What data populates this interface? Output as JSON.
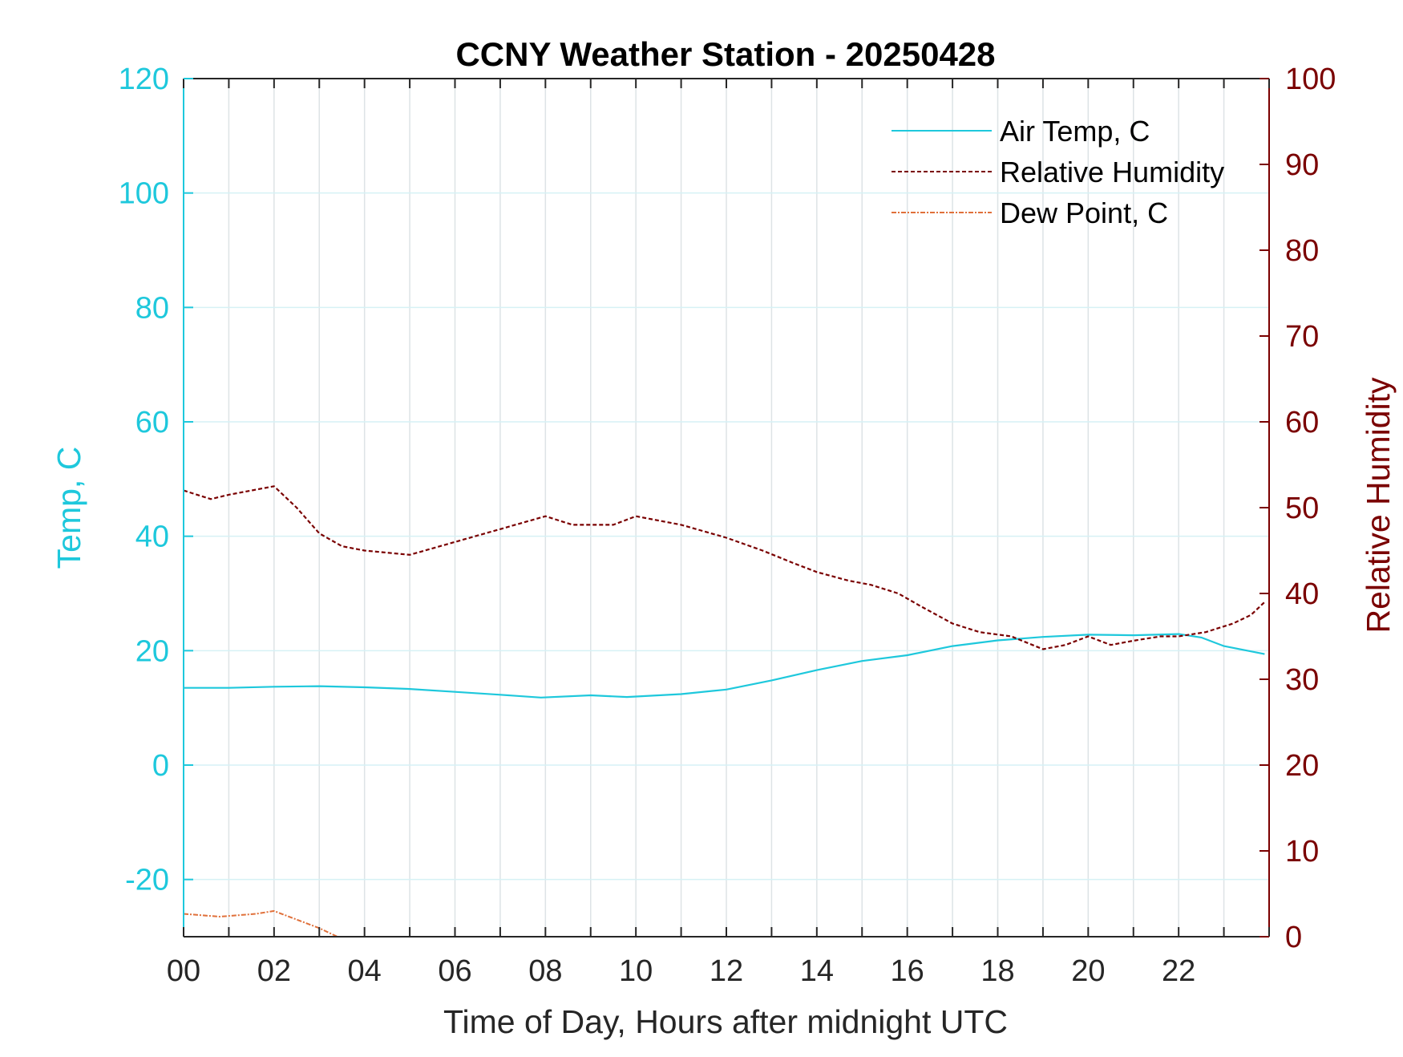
{
  "chart_data": {
    "type": "line",
    "title": "CCNY Weather Station - 20250428",
    "xlabel": "Time of Day, Hours after midnight UTC",
    "ylabel_left": "Temp, C",
    "ylabel_right": "Relative Humidity",
    "xlim": [
      0,
      24
    ],
    "ylim_left": [
      -30,
      120
    ],
    "ylim_right": [
      0,
      100
    ],
    "x_ticks": [
      {
        "value": 0,
        "label": "00"
      },
      {
        "value": 2,
        "label": "02"
      },
      {
        "value": 4,
        "label": "04"
      },
      {
        "value": 6,
        "label": "06"
      },
      {
        "value": 8,
        "label": "08"
      },
      {
        "value": 10,
        "label": "10"
      },
      {
        "value": 12,
        "label": "12"
      },
      {
        "value": 14,
        "label": "14"
      },
      {
        "value": 16,
        "label": "16"
      },
      {
        "value": 18,
        "label": "18"
      },
      {
        "value": 20,
        "label": "20"
      },
      {
        "value": 22,
        "label": "22"
      }
    ],
    "y_ticks_left": [
      {
        "value": -20,
        "label": "-20"
      },
      {
        "value": 0,
        "label": "0"
      },
      {
        "value": 20,
        "label": "20"
      },
      {
        "value": 40,
        "label": "40"
      },
      {
        "value": 60,
        "label": "60"
      },
      {
        "value": 80,
        "label": "80"
      },
      {
        "value": 100,
        "label": "100"
      },
      {
        "value": 120,
        "label": "120"
      }
    ],
    "y_ticks_right": [
      {
        "value": 0,
        "label": "0"
      },
      {
        "value": 10,
        "label": "10"
      },
      {
        "value": 20,
        "label": "20"
      },
      {
        "value": 30,
        "label": "30"
      },
      {
        "value": 40,
        "label": "40"
      },
      {
        "value": 50,
        "label": "50"
      },
      {
        "value": 60,
        "label": "60"
      },
      {
        "value": 70,
        "label": "70"
      },
      {
        "value": 80,
        "label": "80"
      },
      {
        "value": 90,
        "label": "90"
      },
      {
        "value": 100,
        "label": "100"
      }
    ],
    "grid": true,
    "legend_position": "top-right",
    "colors": {
      "temp": "#1ec8dc",
      "humidity": "#7a0000",
      "dewpoint": "#e0703a",
      "axis_text": "#262626"
    },
    "series": [
      {
        "name": "Air Temp, C",
        "axis": "left",
        "x": [
          0,
          1,
          2,
          3,
          4,
          5,
          6,
          7,
          7.9,
          9,
          9.8,
          11,
          12,
          13,
          14,
          15,
          16,
          17,
          18,
          19,
          20,
          21,
          22,
          22.5,
          23,
          23.9
        ],
        "y": [
          13.5,
          13.5,
          13.7,
          13.8,
          13.6,
          13.3,
          12.8,
          12.3,
          11.8,
          12.2,
          11.9,
          12.4,
          13.2,
          14.8,
          16.6,
          18.2,
          19.2,
          20.8,
          21.8,
          22.4,
          22.8,
          22.7,
          22.9,
          22.3,
          20.8,
          19.4
        ]
      },
      {
        "name": "Relative Humidity",
        "axis": "right",
        "x": [
          0,
          0.6,
          1,
          1.5,
          2,
          2.5,
          3,
          3.5,
          4,
          5,
          6,
          7,
          8,
          8.6,
          9.5,
          10,
          11,
          12,
          12.8,
          13.5,
          14,
          14.7,
          15.2,
          15.8,
          16.3,
          17,
          17.6,
          18.3,
          19,
          19.5,
          20,
          20.5,
          21,
          21.6,
          22,
          22.6,
          23.2,
          23.6,
          23.9
        ],
        "y": [
          52,
          51,
          51.5,
          52,
          52.5,
          50,
          47,
          45.5,
          45,
          44.5,
          46,
          47.5,
          49,
          48,
          48,
          49,
          48,
          46.5,
          45,
          43.5,
          42.5,
          41.5,
          41,
          40,
          38.5,
          36.5,
          35.5,
          35,
          33.5,
          34,
          35,
          34,
          34.5,
          35,
          35,
          35.5,
          36.5,
          37.5,
          39
        ]
      },
      {
        "name": "Dew Point, C",
        "axis": "left",
        "x": [
          0,
          0.8,
          1.6,
          2,
          2.5,
          3,
          3.4
        ],
        "y": [
          -26,
          -26.5,
          -26,
          -25.5,
          -27,
          -28.5,
          -30
        ]
      }
    ]
  }
}
